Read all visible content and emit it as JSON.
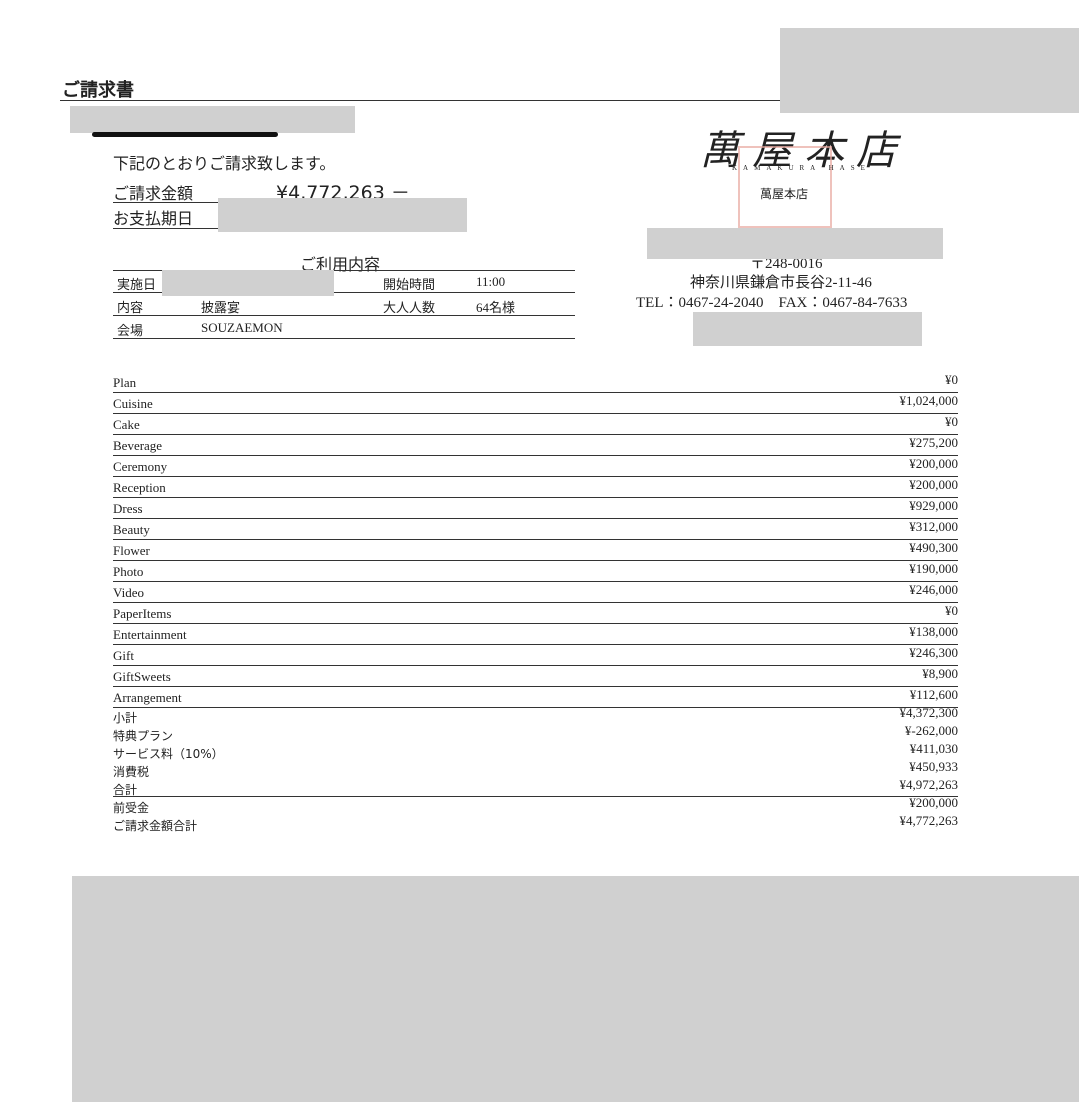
{
  "header": {
    "title": "ご請求書"
  },
  "intro": "下記のとおりご請求致します。",
  "amount": {
    "label": "ご請求金額",
    "value": "¥4,772,263 －"
  },
  "due": {
    "label": "お支払期日"
  },
  "usage": {
    "title": "ご利用内容",
    "rows": [
      [
        "実施日",
        "",
        "開始時間",
        "11:00"
      ],
      [
        "内容",
        "披露宴",
        "大人人数",
        "64名様"
      ],
      [
        "会場",
        "SOUZAEMON",
        "",
        ""
      ]
    ]
  },
  "company": {
    "logo": "萬屋本店",
    "romaji": "KAMAKURA HASE",
    "name": "萬屋本店",
    "postal": "〒248-0016",
    "address": "神奈川県鎌倉市長谷2-11-46",
    "tel": "TEL：0467-24-2040　FAX：0467-84-7633"
  },
  "items": [
    [
      "Plan",
      "¥0"
    ],
    [
      "Cuisine",
      "¥1,024,000"
    ],
    [
      "Cake",
      "¥0"
    ],
    [
      "Beverage",
      "¥275,200"
    ],
    [
      "Ceremony",
      "¥200,000"
    ],
    [
      "Reception",
      "¥200,000"
    ],
    [
      "Dress",
      "¥929,000"
    ],
    [
      "Beauty",
      "¥312,000"
    ],
    [
      "Flower",
      "¥490,300"
    ],
    [
      "Photo",
      "¥190,000"
    ],
    [
      "Video",
      "¥246,000"
    ],
    [
      "PaperItems",
      "¥0"
    ],
    [
      "Entertainment",
      "¥138,000"
    ],
    [
      "Gift",
      "¥246,300"
    ],
    [
      "GiftSweets",
      "¥8,900"
    ],
    [
      "Arrangement",
      "¥112,600"
    ]
  ],
  "summary": [
    [
      "小計",
      "¥4,372,300"
    ],
    [
      "特典プラン",
      "¥-262,000"
    ],
    [
      "サービス料（10%）",
      "¥411,030"
    ],
    [
      "消費税",
      "¥450,933"
    ],
    [
      "合計",
      "¥4,972,263"
    ],
    [
      "前受金",
      "¥200,000"
    ],
    [
      "ご請求金額合計",
      "¥4,772,263"
    ]
  ]
}
